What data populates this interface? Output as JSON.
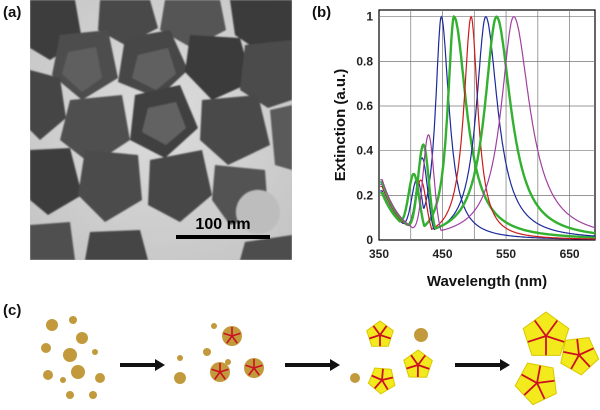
{
  "figure": {
    "panel_a": {
      "label": "(a)",
      "scale_bar": "100 nm"
    },
    "panel_b": {
      "label": "(b)"
    },
    "panel_c": {
      "label": "(c)"
    }
  },
  "chart_data": {
    "type": "line",
    "title": "",
    "xlabel": "Wavelength (nm)",
    "ylabel": "Extinction (a.u.)",
    "xlim": [
      350,
      690
    ],
    "ylim": [
      0,
      1.03
    ],
    "xticks": [
      350,
      450,
      550,
      650
    ],
    "yticks": [
      0,
      0.2,
      0.4,
      0.6,
      0.8,
      1
    ],
    "grid": true,
    "series": [
      {
        "name": "blue 448",
        "color": "#1a2a9a",
        "peak": 448,
        "w_red": 30,
        "w_blue": 22,
        "tail": 0.22,
        "sec_pos": 410,
        "sec_amp": 0.24
      },
      {
        "name": "green 468",
        "color": "#33b030",
        "peak": 468,
        "w_red": 48,
        "w_blue": 24,
        "tail": 0.21,
        "sec_pos": 405,
        "sec_amp": 0.26
      },
      {
        "name": "red 495",
        "color": "#cc1a1a",
        "peak": 495,
        "w_red": 26,
        "w_blue": 28,
        "tail": 0.24,
        "sec_pos": 416,
        "sec_amp": 0.24
      },
      {
        "name": "blue 518",
        "color": "#1a2a9a",
        "peak": 518,
        "w_red": 46,
        "w_blue": 36,
        "tail": 0.25,
        "sec_pos": 418,
        "sec_amp": 0.34
      },
      {
        "name": "green 535",
        "color": "#33b030",
        "peak": 535,
        "w_red": 55,
        "w_blue": 45,
        "tail": 0.26,
        "sec_pos": 420,
        "sec_amp": 0.4
      },
      {
        "name": "purple 562",
        "color": "#a040a0",
        "peak": 562,
        "w_red": 62,
        "w_blue": 48,
        "tail": 0.27,
        "sec_pos": 428,
        "sec_amp": 0.45
      }
    ]
  },
  "colors": {
    "particle": "#c29a3c",
    "polyhedron": "#f2ea1c",
    "core_lines": "#cc1022",
    "arrow": "#111111"
  }
}
